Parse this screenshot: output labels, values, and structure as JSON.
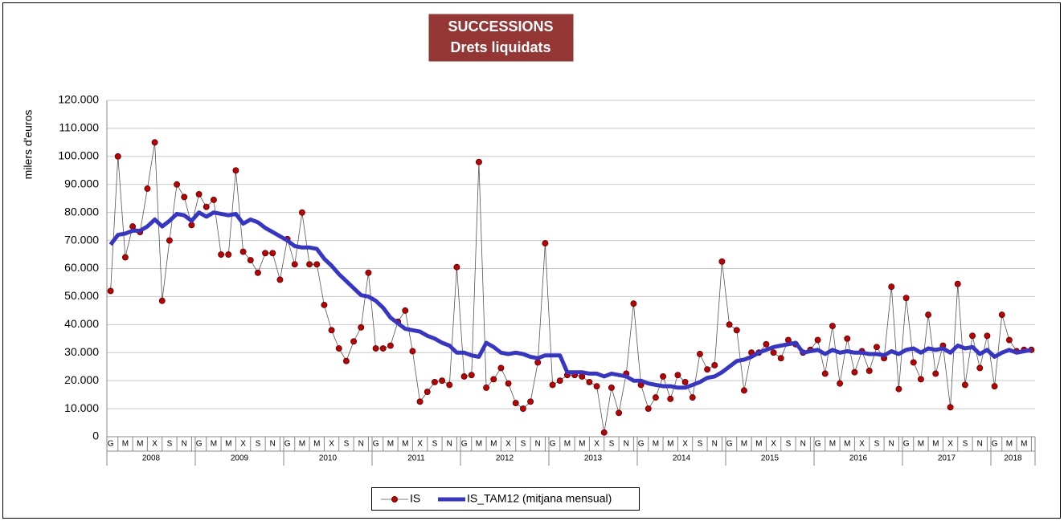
{
  "chart_data": {
    "type": "line",
    "title_lines": [
      "SUCCESSIONS",
      "Drets liquidats"
    ],
    "title_background": "#943634",
    "ylabel": "milers d'euros",
    "categories": [
      "G",
      null,
      "M",
      null,
      "M",
      null,
      "X",
      null,
      "S",
      null,
      "N",
      null,
      "G",
      null,
      "M",
      null,
      "M",
      null,
      "X",
      null,
      "S",
      null,
      "N",
      null,
      "G",
      null,
      "M",
      null,
      "M",
      null,
      "X",
      null,
      "S",
      null,
      "N",
      null,
      "G",
      null,
      "M",
      null,
      "M",
      null,
      "X",
      null,
      "S",
      null,
      "N",
      null,
      "G",
      null,
      "M",
      null,
      "M",
      null,
      "X",
      null,
      "S",
      null,
      "N",
      null,
      "G",
      null,
      "M",
      null,
      "M",
      null,
      "X",
      null,
      "S",
      null,
      "N",
      null,
      "G",
      null,
      "M",
      null,
      "M",
      null,
      "X",
      null,
      "S",
      null,
      "N",
      null,
      "G",
      null,
      "M",
      null,
      "M",
      null,
      "X",
      null,
      "S",
      null,
      "N",
      null,
      "G",
      null,
      "M",
      null,
      "M",
      null,
      "X",
      null,
      "S",
      null,
      "N",
      null,
      "G",
      null,
      "M",
      null,
      "M",
      null,
      "X",
      null,
      "S",
      null,
      "N",
      null,
      "G",
      null,
      "M",
      null,
      "M",
      null
    ],
    "year_labels": [
      "2008",
      "2009",
      "2010",
      "2011",
      "2012",
      "2013",
      "2014",
      "2015",
      "2016",
      "2017",
      "2018"
    ],
    "series": [
      {
        "name": "IS",
        "color": "#c00000",
        "line_color": "#555555",
        "marker": true,
        "values": [
          52000,
          100000,
          64000,
          75000,
          73000,
          88500,
          105000,
          48500,
          70000,
          90000,
          85500,
          75500,
          86500,
          82000,
          84500,
          65000,
          65000,
          95000,
          66000,
          63000,
          58500,
          65500,
          65500,
          56000,
          70500,
          61500,
          80000,
          61500,
          61500,
          47000,
          38000,
          31500,
          27000,
          34000,
          39000,
          58500,
          31500,
          31500,
          32500,
          41000,
          45000,
          30500,
          12500,
          16000,
          19500,
          20000,
          18500,
          60500,
          21500,
          22000,
          98000,
          17500,
          20500,
          24500,
          19000,
          12000,
          10000,
          12500,
          26500,
          69000,
          18500,
          20000,
          22000,
          22000,
          21500,
          19500,
          18000,
          1500,
          17500,
          8500,
          22500,
          47500,
          18500,
          10000,
          14000,
          21500,
          13500,
          22000,
          19500,
          14000,
          29500,
          24000,
          25500,
          62500,
          40000,
          38000,
          16500,
          30000,
          30000,
          33000,
          30000,
          28000,
          34500,
          33000,
          30000,
          31000,
          34500,
          22500,
          39500,
          19000,
          35000,
          23000,
          30500,
          23500,
          32000,
          28000,
          53500,
          17000,
          49500,
          26500,
          20500,
          43500,
          22500,
          32500,
          10500,
          54500,
          18500,
          36000,
          24500,
          36000,
          18000,
          43500,
          34500,
          30500,
          31000,
          31000
        ]
      },
      {
        "name": "IS_TAM12 (mitjana mensual)",
        "color": "#3535c8",
        "marker": false,
        "values": [
          68500,
          72000,
          72500,
          73500,
          73500,
          75000,
          77500,
          75000,
          77000,
          79500,
          79000,
          77000,
          80000,
          78500,
          80000,
          79500,
          79000,
          79500,
          76000,
          77500,
          76500,
          74500,
          73000,
          71500,
          70000,
          68000,
          67500,
          67500,
          67000,
          63500,
          61000,
          58000,
          55500,
          53000,
          50500,
          50000,
          48500,
          46000,
          42500,
          40500,
          38500,
          38000,
          37500,
          36000,
          35000,
          33500,
          32500,
          30000,
          30000,
          29000,
          28500,
          33500,
          32000,
          30000,
          29500,
          30000,
          29500,
          28500,
          28000,
          29000,
          29000,
          29000,
          23000,
          23000,
          23000,
          22500,
          22500,
          21500,
          22500,
          22000,
          21500,
          20000,
          20000,
          19000,
          18500,
          18000,
          18000,
          17500,
          17500,
          18500,
          19500,
          21000,
          21500,
          23000,
          25000,
          27000,
          27500,
          28500,
          30000,
          31000,
          32000,
          32500,
          33000,
          33500,
          30000,
          30500,
          31000,
          29500,
          31000,
          30000,
          30500,
          30000,
          30000,
          29500,
          29500,
          29000,
          30500,
          29500,
          31000,
          31500,
          30000,
          31500,
          31000,
          31500,
          30000,
          32500,
          31500,
          32000,
          29500,
          31000,
          28500,
          30000,
          31000,
          30000,
          30500,
          31000
        ]
      }
    ],
    "ylim": [
      0,
      120000
    ],
    "yticks": [
      0,
      {
        "value": 10000,
        "label": "10.000"
      },
      {
        "value": 20000,
        "label": "20.000"
      },
      {
        "value": 30000,
        "label": "30.000"
      },
      {
        "value": 40000,
        "label": "40.000"
      },
      {
        "value": 50000,
        "label": "50.000"
      },
      {
        "value": 60000,
        "label": "60.000"
      },
      {
        "value": 70000,
        "label": "70.000"
      },
      {
        "value": 80000,
        "label": "80.000"
      },
      {
        "value": 90000,
        "label": "90.000"
      },
      {
        "value": 100000,
        "label": "100.000"
      },
      {
        "value": 110000,
        "label": "110.000"
      },
      {
        "value": 120000,
        "label": "120.000"
      }
    ],
    "grid": true,
    "legend": "bottom"
  }
}
